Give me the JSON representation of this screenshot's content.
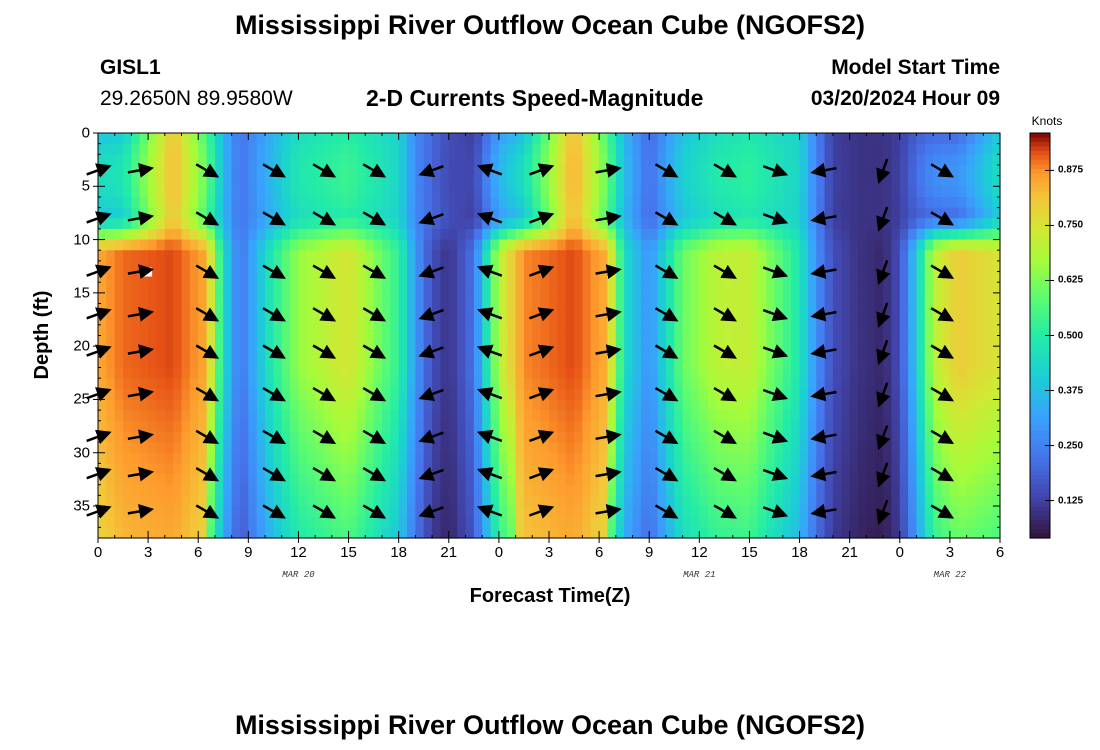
{
  "chart_data": {
    "type": "heatmap",
    "title": "Mississippi River Outflow Ocean Cube (NGOFS2)",
    "station": "GISL1",
    "location": "29.2650N  89.9580W",
    "subtitle": "2-D Currents Speed-Magnitude",
    "model_start_label": "Model Start Time",
    "model_start_value": "03/20/2024 Hour 09",
    "xlabel": "Forecast Time(Z)",
    "ylabel": "Depth (ft)",
    "x_tick_labels": [
      "0",
      "3",
      "6",
      "9",
      "12",
      "15",
      "18",
      "21",
      "0",
      "3",
      "6",
      "9",
      "12",
      "15",
      "18",
      "21",
      "0",
      "3",
      "6"
    ],
    "date_labels": [
      {
        "text": "MAR 20",
        "hours": 12
      },
      {
        "text": "MAR 21",
        "hours": 36
      },
      {
        "text": "MAR 22",
        "hours": 51
      }
    ],
    "y_ticks": [
      0,
      5,
      10,
      15,
      20,
      25,
      30,
      35
    ],
    "ylim": [
      0,
      38
    ],
    "xlim_hours": [
      0,
      54
    ],
    "colorbar": {
      "label": "Knots",
      "ticks": [
        "0.875",
        "0.750",
        "0.625",
        "0.500",
        "0.375",
        "0.250",
        "0.125"
      ],
      "range": [
        0.04,
        0.96
      ]
    },
    "speed_profile_hours": [
      0,
      1.5,
      4.5,
      6.5,
      7.5,
      8.5,
      10.5,
      12,
      15,
      18,
      19,
      20,
      21,
      22.5,
      24,
      25.5,
      28.5,
      30.5,
      31.5,
      33,
      35,
      37,
      39,
      42,
      43,
      44,
      45.5,
      47,
      48,
      49,
      50,
      51.5,
      54
    ],
    "speed_surface_knots": [
      0.38,
      0.4,
      0.82,
      0.55,
      0.35,
      0.22,
      0.35,
      0.45,
      0.5,
      0.42,
      0.26,
      0.2,
      0.15,
      0.12,
      0.3,
      0.38,
      0.84,
      0.55,
      0.36,
      0.2,
      0.38,
      0.45,
      0.48,
      0.42,
      0.25,
      0.12,
      0.1,
      0.1,
      0.12,
      0.18,
      0.2,
      0.2,
      0.4
    ],
    "speed_deep_knots": [
      0.85,
      0.9,
      0.92,
      0.85,
      0.45,
      0.22,
      0.5,
      0.65,
      0.75,
      0.52,
      0.3,
      0.15,
      0.1,
      0.22,
      0.7,
      0.88,
      0.92,
      0.84,
      0.45,
      0.28,
      0.6,
      0.7,
      0.72,
      0.48,
      0.28,
      0.15,
      0.1,
      0.08,
      0.15,
      0.4,
      0.7,
      0.8,
      0.75
    ],
    "arrow_hours": [
      0,
      2.5,
      6.5,
      10.5,
      13.5,
      16.5,
      20,
      23.5,
      26.5,
      30.5,
      34,
      37.5,
      40.5,
      43.5,
      47,
      50.5
    ],
    "arrow_depths_ft": [
      3.5,
      8,
      13,
      17,
      20.5,
      24.5,
      28.5,
      32,
      35.5
    ],
    "arrow_direction_deg": [
      20,
      10,
      -30,
      -30,
      -30,
      -30,
      -160,
      160,
      20,
      10,
      -30,
      -30,
      -20,
      -170,
      -110,
      -30
    ],
    "white_marker": {
      "hours": 3,
      "depth_ft": 13
    }
  }
}
